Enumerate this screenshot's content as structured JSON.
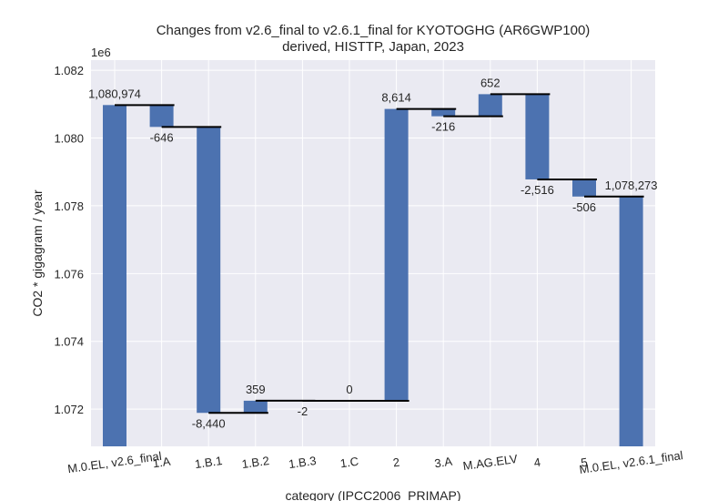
{
  "chart_data": {
    "type": "bar",
    "subtype": "waterfall",
    "title": "Changes from v2.6_final to v2.6.1_final for KYOTOGHG (AR6GWP100)",
    "subtitle": "derived, HISTTP, Japan, 2023",
    "xlabel": "category (IPCC2006_PRIMAP)",
    "ylabel": "CO2 * gigagram / year",
    "y_offset_label": "1e6",
    "ylim": [
      1070900,
      1082300
    ],
    "yticks": [
      1072000,
      1074000,
      1076000,
      1078000,
      1080000,
      1082000
    ],
    "ytick_labels": [
      "1.072",
      "1.074",
      "1.076",
      "1.078",
      "1.080",
      "1.082"
    ],
    "grid": true,
    "bar_color": "#4c72b0",
    "background": "#eaeaf2",
    "categories": [
      "M.0.EL, v2.6_final",
      "1.A",
      "1.B.1",
      "1.B.2",
      "1.B.3",
      "1.C",
      "2",
      "3.A",
      "M.AG.ELV",
      "4",
      "5",
      "M.0.EL, v2.6.1_final"
    ],
    "bar_kind": [
      "total",
      "delta",
      "delta",
      "delta",
      "delta",
      "delta",
      "delta",
      "delta",
      "delta",
      "delta",
      "delta",
      "total"
    ],
    "values": [
      1080974,
      -646,
      -8440,
      359,
      -2,
      0,
      8614,
      -216,
      652,
      -2516,
      -506,
      1078273
    ],
    "value_labels": [
      "1,080,974",
      "-646",
      "-8,440",
      "359",
      "-2",
      "0",
      "8,614",
      "-216",
      "652",
      "-2,516",
      "-506",
      "1,078,273"
    ]
  }
}
